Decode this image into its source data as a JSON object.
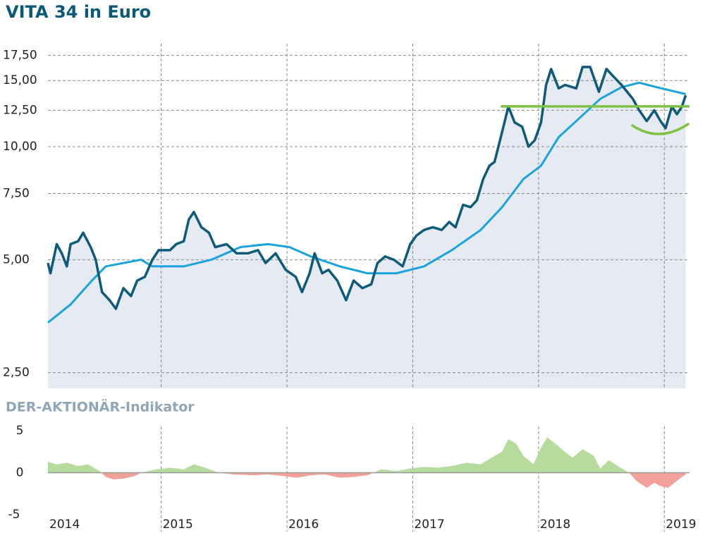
{
  "chart_data": [
    {
      "type": "line",
      "title": "VITA 34 in Euro",
      "log_scale": true,
      "grid": true,
      "xlim": [
        2014.1,
        2019.2
      ],
      "xticks": [
        2015,
        2016,
        2017,
        2018,
        2019
      ],
      "ylim": [
        2.27,
        18.8
      ],
      "yticks": [
        {
          "value": 2.5,
          "label": "2,50"
        },
        {
          "value": 5,
          "label": "5,00"
        },
        {
          "value": 7.5,
          "label": "7,50"
        },
        {
          "value": 10,
          "label": "10,00"
        },
        {
          "value": 12.5,
          "label": "12,50"
        },
        {
          "value": 15,
          "label": "15,00"
        },
        {
          "value": 17.5,
          "label": "17,50"
        }
      ],
      "area_color": "#e5eaf3",
      "series": [
        {
          "color": "#0d5b78",
          "x": [
            2014.1,
            2014.12,
            2014.17,
            2014.21,
            2014.25,
            2014.28,
            2014.34,
            2014.38,
            2014.44,
            2014.48,
            2014.53,
            2014.59,
            2014.64,
            2014.7,
            2014.76,
            2014.81,
            2014.87,
            2014.93,
            2014.98,
            2015.07,
            2015.12,
            2015.18,
            2015.22,
            2015.26,
            2015.32,
            2015.38,
            2015.43,
            2015.52,
            2015.6,
            2015.69,
            2015.77,
            2015.83,
            2015.91,
            2015.99,
            2016.07,
            2016.12,
            2016.18,
            2016.22,
            2016.28,
            2016.33,
            2016.4,
            2016.47,
            2016.53,
            2016.6,
            2016.67,
            2016.72,
            2016.78,
            2016.85,
            2016.92,
            2016.98,
            2017.03,
            2017.09,
            2017.16,
            2017.23,
            2017.29,
            2017.34,
            2017.4,
            2017.46,
            2017.51,
            2017.56,
            2017.61,
            2017.65,
            2017.7,
            2017.74,
            2017.76,
            2017.81,
            2017.87,
            2017.92,
            2017.97,
            2018.02,
            2018.06,
            2018.1,
            2018.16,
            2018.21,
            2018.3,
            2018.35,
            2018.41,
            2018.48,
            2018.54,
            2018.61,
            2018.66,
            2018.75,
            2018.8,
            2018.86,
            2018.92,
            2018.97,
            2019.01,
            2019.06,
            2019.1,
            2019.14,
            2019.17
          ],
          "values": [
            4.9,
            4.6,
            5.5,
            5.2,
            4.8,
            5.5,
            5.6,
            5.9,
            5.4,
            5.0,
            4.1,
            3.9,
            3.7,
            4.2,
            4.0,
            4.4,
            4.5,
            5.0,
            5.3,
            5.3,
            5.5,
            5.6,
            6.4,
            6.7,
            6.1,
            5.9,
            5.4,
            5.5,
            5.2,
            5.2,
            5.3,
            4.9,
            5.2,
            4.7,
            4.5,
            4.1,
            4.6,
            5.2,
            4.6,
            4.7,
            4.4,
            3.9,
            4.4,
            4.2,
            4.3,
            4.9,
            5.1,
            5.0,
            4.8,
            5.5,
            5.8,
            6.0,
            6.1,
            6.0,
            6.3,
            6.1,
            7.0,
            6.9,
            7.2,
            8.2,
            8.9,
            9.1,
            10.6,
            12.0,
            12.8,
            11.6,
            11.3,
            10.0,
            10.4,
            11.6,
            14.6,
            16.1,
            14.3,
            14.6,
            14.3,
            16.3,
            16.3,
            14.0,
            16.1,
            15.2,
            14.6,
            13.4,
            12.5,
            11.7,
            12.5,
            11.7,
            11.2,
            12.8,
            12.2,
            12.8,
            13.7
          ]
        },
        {
          "color": "#1aa3dc",
          "x": [
            2014.1,
            2014.28,
            2014.45,
            2014.56,
            2014.84,
            2014.93,
            2015.18,
            2015.4,
            2015.63,
            2015.85,
            2016.02,
            2016.19,
            2016.42,
            2016.64,
            2016.87,
            2017.09,
            2017.31,
            2017.54,
            2017.71,
            2017.88,
            2018.02,
            2018.16,
            2018.3,
            2018.49,
            2018.66,
            2018.8,
            2018.94,
            2019.17
          ],
          "values": [
            3.4,
            3.8,
            4.4,
            4.8,
            5.0,
            4.8,
            4.8,
            5.0,
            5.4,
            5.5,
            5.4,
            5.1,
            4.8,
            4.6,
            4.6,
            4.8,
            5.3,
            6.0,
            6.9,
            8.2,
            8.9,
            10.6,
            11.7,
            13.4,
            14.4,
            14.8,
            14.4,
            13.8
          ]
        }
      ],
      "hline": {
        "value": 12.8,
        "x": [
          2017.7,
          2019.2
        ],
        "color": "#7dc242"
      }
    },
    {
      "type": "area",
      "title": "DER-AKTIONÄR-Indikator",
      "xlim": [
        2014.1,
        2019.2
      ],
      "xticks": [
        2014,
        2015,
        2016,
        2017,
        2018,
        2019
      ],
      "ylim": [
        -5.5,
        5.5
      ],
      "yticks": [
        5,
        0,
        -5
      ],
      "pos_color": "#b5dc9c",
      "neg_color": "#f2a19a",
      "x": [
        2014.1,
        2014.17,
        2014.25,
        2014.34,
        2014.42,
        2014.51,
        2014.56,
        2014.62,
        2014.7,
        2014.79,
        2014.84,
        2014.96,
        2015.07,
        2015.18,
        2015.26,
        2015.35,
        2015.46,
        2015.57,
        2015.74,
        2015.85,
        2015.97,
        2016.08,
        2016.19,
        2016.3,
        2016.42,
        2016.53,
        2016.64,
        2016.75,
        2016.87,
        2016.98,
        2017.09,
        2017.2,
        2017.31,
        2017.43,
        2017.54,
        2017.65,
        2017.71,
        2017.76,
        2017.82,
        2017.88,
        2017.96,
        2018.02,
        2018.07,
        2018.13,
        2018.21,
        2018.27,
        2018.35,
        2018.44,
        2018.49,
        2018.56,
        2018.63,
        2018.72,
        2018.78,
        2018.86,
        2018.92,
        2018.97,
        2019.03,
        2019.08,
        2019.14,
        2019.17
      ],
      "values": [
        1.3,
        1.0,
        1.2,
        0.8,
        1.0,
        0.2,
        -0.5,
        -0.8,
        -0.7,
        -0.4,
        0,
        0.4,
        0.6,
        0.4,
        1.0,
        0.6,
        0,
        -0.2,
        -0.3,
        -0.2,
        -0.4,
        -0.6,
        -0.3,
        -0.2,
        -0.6,
        -0.5,
        -0.3,
        0.4,
        0.2,
        0.5,
        0.7,
        0.6,
        0.8,
        1.2,
        1.0,
        2.0,
        2.5,
        4.0,
        3.5,
        2.0,
        1.0,
        3.0,
        4.2,
        3.5,
        2.5,
        1.8,
        2.8,
        2.0,
        0.5,
        1.5,
        0.8,
        0,
        -1.0,
        -1.8,
        -1.2,
        -1.6,
        -1.8,
        -1.2,
        -0.5,
        -0.2
      ]
    }
  ]
}
